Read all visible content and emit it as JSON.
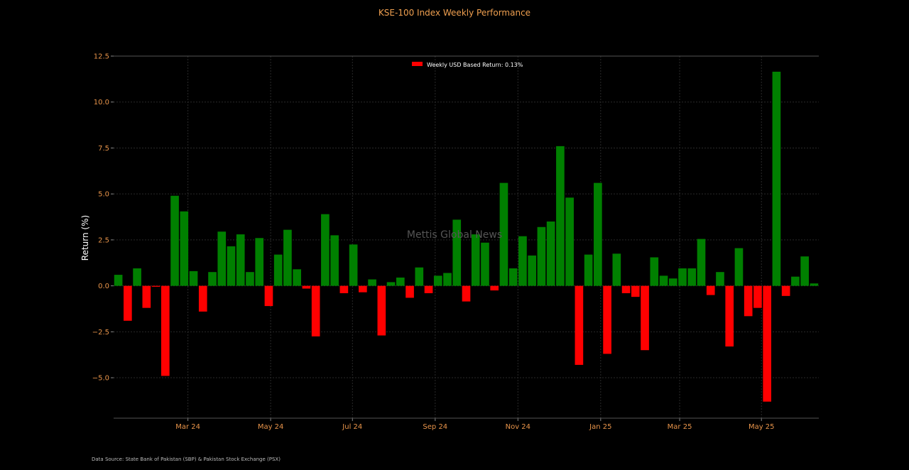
{
  "chart_data": {
    "type": "bar",
    "title": "KSE-100 Index Weekly Performance",
    "ylabel": "Return (%)",
    "xlabel": "",
    "ylim": [
      -7.2,
      12.5
    ],
    "yticks": [
      12.5,
      10.0,
      7.5,
      5.0,
      2.5,
      0.0,
      -2.5,
      -5.0
    ],
    "ytick_labels": [
      "12.5",
      "10.0",
      "7.5",
      "5.0",
      "2.5",
      "0.0",
      "−2.5",
      "−5.0"
    ],
    "xtick_labels": [
      "Mar 24",
      "May 24",
      "Jul 24",
      "Sep 24",
      "Nov 24",
      "Jan 25",
      "Mar 25",
      "May 25"
    ],
    "xtick_weeks": [
      7.4,
      16.2,
      24.9,
      33.7,
      42.5,
      51.3,
      59.7,
      68.4
    ],
    "legend": {
      "label": "Weekly USD Based Return: 0.13%",
      "position": "top-center"
    },
    "grid": true,
    "positive_color": "#008000",
    "negative_color": "#ff0000",
    "values": [
      0.6,
      -1.9,
      0.95,
      -1.2,
      -0.05,
      -4.9,
      4.9,
      4.05,
      0.8,
      -1.4,
      0.75,
      2.95,
      2.15,
      2.8,
      0.75,
      2.6,
      -1.1,
      1.7,
      3.05,
      0.9,
      -0.15,
      -2.75,
      3.9,
      2.75,
      -0.4,
      2.25,
      -0.35,
      0.35,
      -2.7,
      0.2,
      0.45,
      -0.65,
      1.0,
      -0.4,
      0.55,
      0.7,
      3.6,
      -0.85,
      2.8,
      2.35,
      -0.25,
      5.6,
      0.95,
      2.7,
      1.65,
      3.2,
      3.5,
      7.6,
      4.8,
      -4.3,
      1.7,
      5.6,
      -3.7,
      1.75,
      -0.4,
      -0.6,
      -3.5,
      1.55,
      0.55,
      0.4,
      0.95,
      0.95,
      2.55,
      -0.5,
      0.75,
      -3.3,
      2.05,
      -1.65,
      -1.2,
      -6.3,
      11.65,
      -0.55,
      0.5,
      1.6,
      0.13
    ]
  },
  "watermark": "Mettis Global News",
  "source": "Data Source: State Bank of Pakistan (SBP) & Pakistan Stock Exchange (PSX)"
}
